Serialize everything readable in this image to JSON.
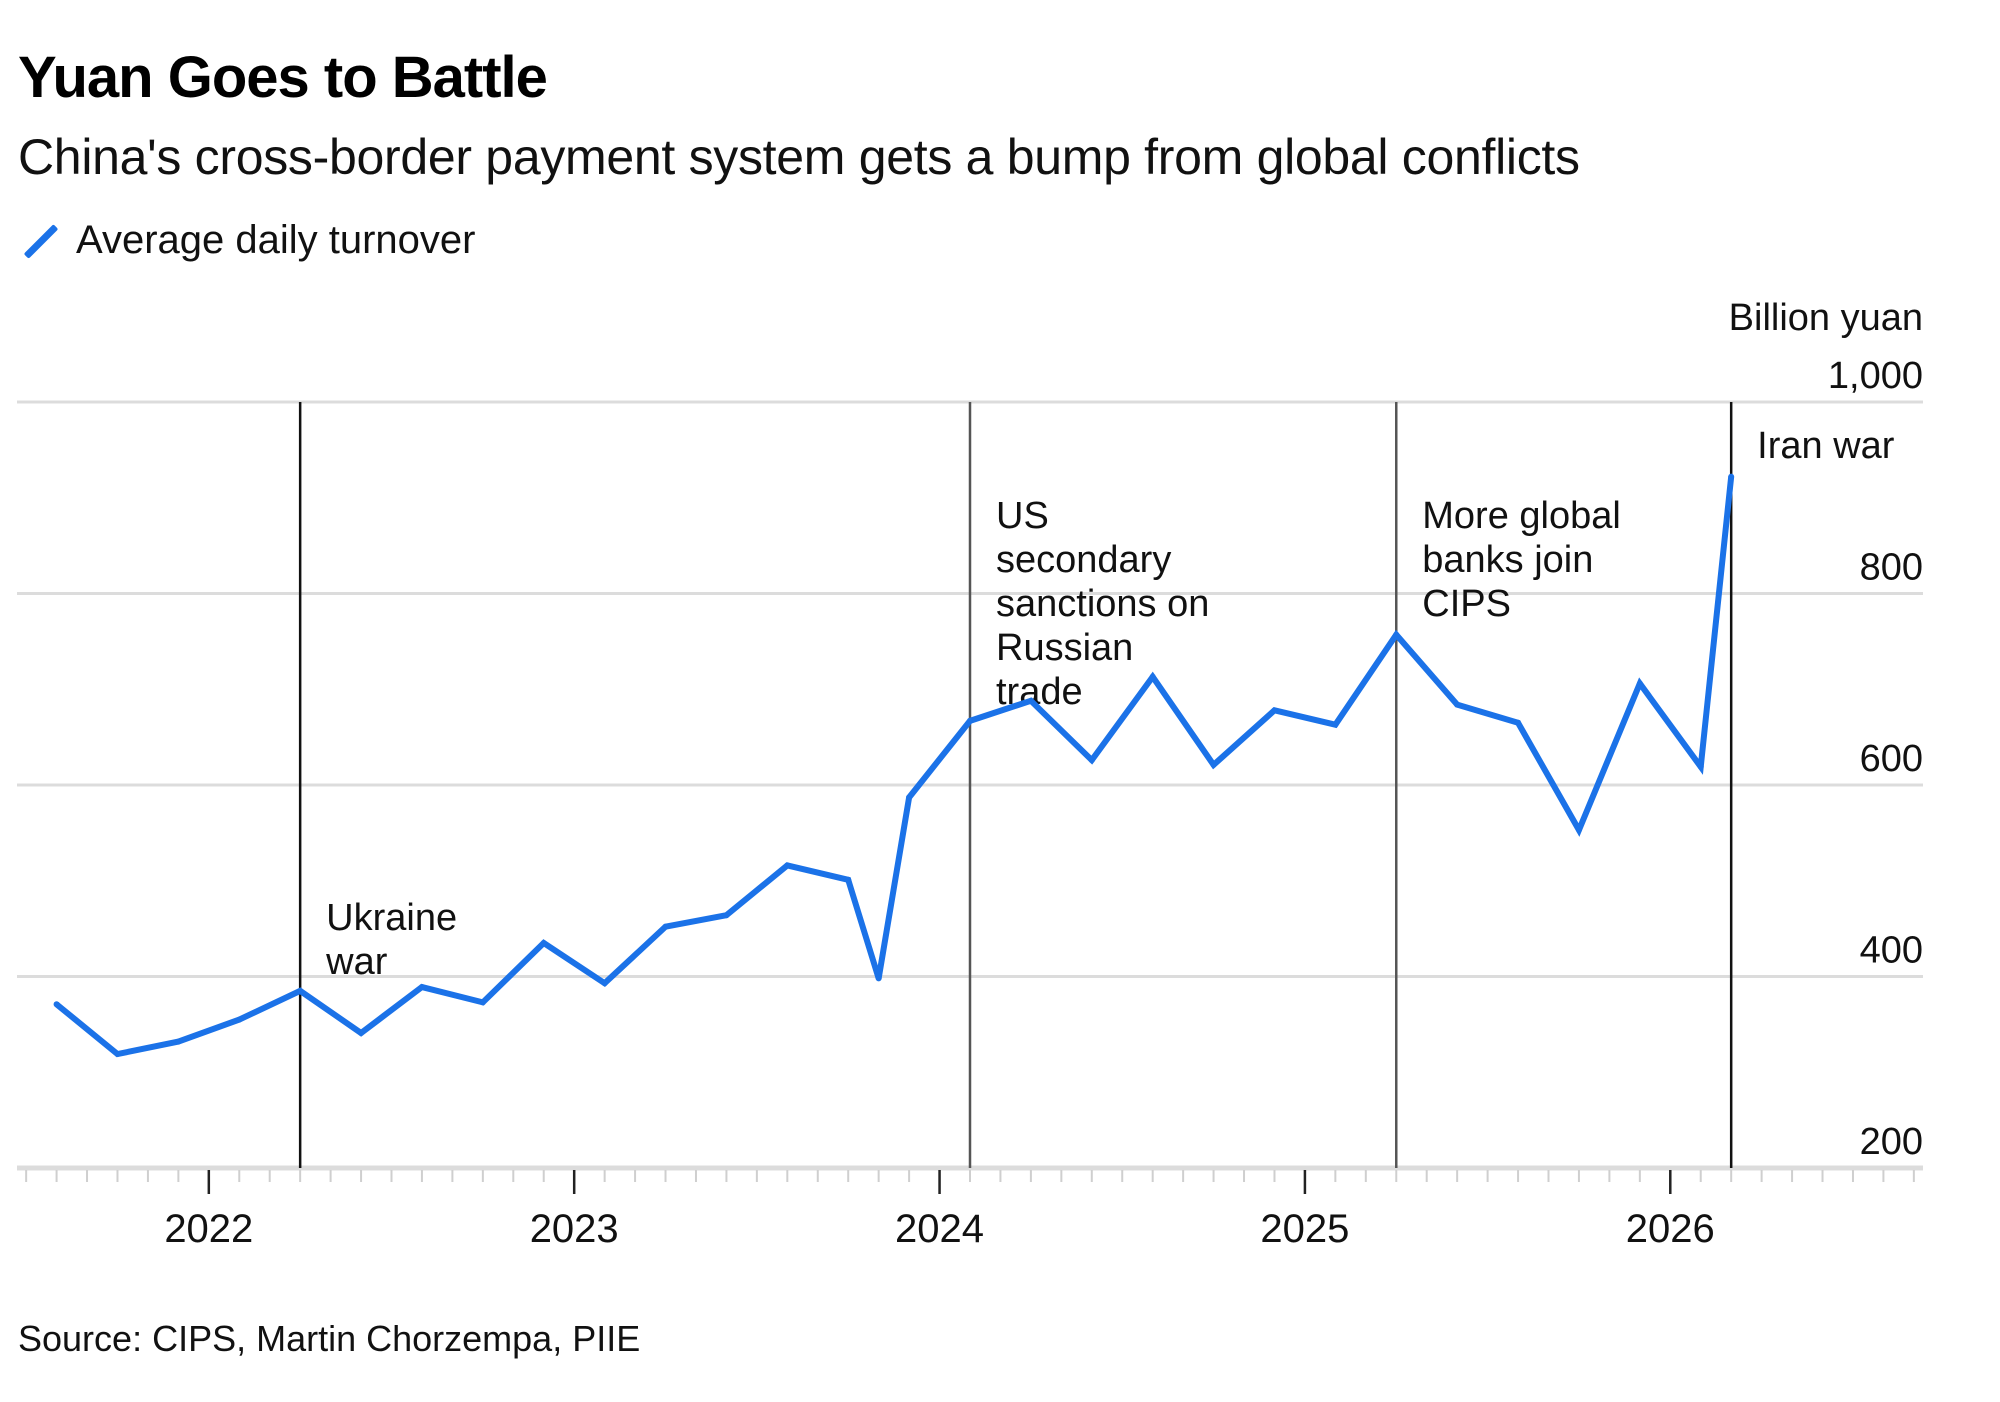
{
  "header": {
    "title": "Yuan Goes to Battle",
    "subtitle": "China's cross-border payment system gets a bump from global conflicts"
  },
  "legend": {
    "items": [
      {
        "label": "Average daily turnover",
        "icon": "diagonal-line-swatch",
        "color": "#1b72e8"
      }
    ]
  },
  "footer": {
    "source": "Source: CIPS, Martin Chorzempa, PIIE"
  },
  "chart_data": {
    "type": "line",
    "title": "Yuan Goes to Battle",
    "subtitle": "China's cross-border payment system gets a bump from global conflicts",
    "xlabel": "",
    "ylabel": "Billion yuan",
    "y_unit_label": "Billion yuan",
    "ylim": [
      200,
      1000
    ],
    "yticks": [
      200,
      400,
      600,
      800,
      1000
    ],
    "ytick_labels": [
      "200",
      "400",
      "600",
      "800",
      "1,000"
    ],
    "y_axis_side": "right",
    "xlim": [
      "2021-07",
      "2026-09"
    ],
    "xticks": [
      "2022-01",
      "2023-01",
      "2024-01",
      "2025-01",
      "2026-01"
    ],
    "xtick_labels": [
      "2022",
      "2023",
      "2024",
      "2025",
      "2026"
    ],
    "minor_ticks": "monthly",
    "grid": "horizontal",
    "legend_position": "top-left",
    "series": [
      {
        "name": "Average daily turnover",
        "color": "#1b72e8",
        "x": [
          "2021-08",
          "2021-10",
          "2021-12",
          "2022-02",
          "2022-04",
          "2022-06",
          "2022-08",
          "2022-10",
          "2022-12",
          "2023-02",
          "2023-04",
          "2023-06",
          "2023-08",
          "2023-10",
          "2023-11",
          "2023-12",
          "2024-02",
          "2024-04",
          "2024-06",
          "2024-08",
          "2024-10",
          "2024-12",
          "2025-02",
          "2025-04",
          "2025-06",
          "2025-08",
          "2025-10",
          "2025-12",
          "2026-02",
          "2026-03"
        ],
        "values": [
          371,
          319,
          332,
          355,
          385,
          341,
          389,
          373,
          435,
          393,
          452,
          464,
          516,
          501,
          398,
          587,
          667,
          688,
          626,
          713,
          621,
          678,
          663,
          757,
          684,
          665,
          553,
          706,
          619,
          922
        ]
      }
    ],
    "annotations": [
      {
        "date": "2022-04",
        "lines": [
          "Ukraine",
          "war"
        ]
      },
      {
        "date": "2024-02",
        "lines": [
          "US",
          "secondary",
          "sanctions on",
          "Russian",
          "trade"
        ]
      },
      {
        "date": "2025-04",
        "lines": [
          "More global",
          "banks join",
          "CIPS"
        ]
      },
      {
        "date": "2026-03",
        "lines": [
          "Iran war"
        ]
      }
    ]
  }
}
